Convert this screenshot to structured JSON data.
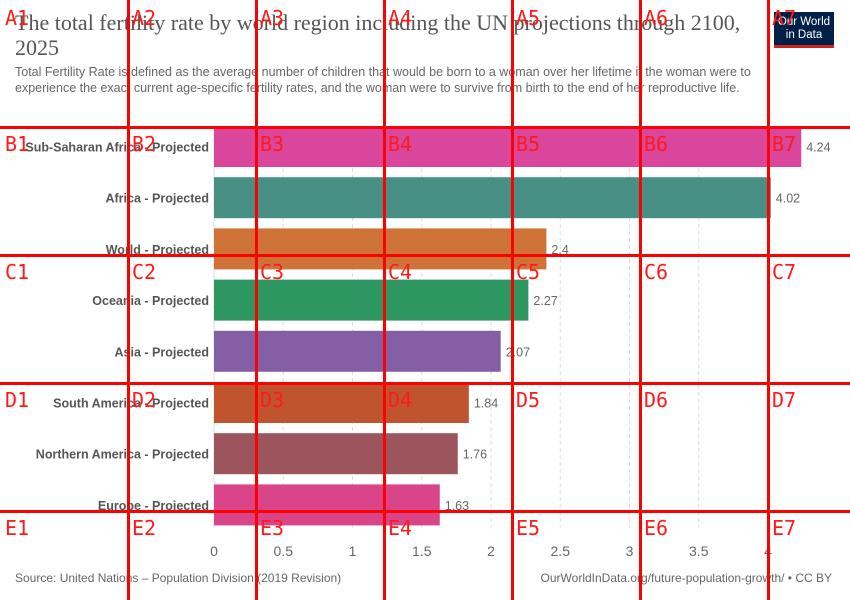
{
  "header": {
    "title": "The total fertility rate by world region including the UN projections through 2100, 2025",
    "subtitle": "Total Fertility Rate is defined as the average number of children that would be born to a woman over her lifetime if the woman were to experience the exact current age-specific fertility rates, and the woman were to survive from birth to the end of her reproductive life.",
    "logo_line1": "Our World",
    "logo_line2": "in Data"
  },
  "chart_data": {
    "type": "bar",
    "orientation": "horizontal",
    "categories": [
      "Sub-Saharan Africa - Projected",
      "Africa - Projected",
      "World - Projected",
      "Oceania - Projected",
      "Asia - Projected",
      "South America - Projected",
      "Northern America - Projected",
      "Europe - Projected"
    ],
    "values": [
      4.24,
      4.02,
      2.4,
      2.27,
      2.07,
      1.84,
      1.76,
      1.63
    ],
    "value_labels": [
      "4.24",
      "4.02",
      "2.4",
      "2.27",
      "2.07",
      "1.84",
      "1.76",
      "1.63"
    ],
    "colors": [
      "#d73c97",
      "#3f8a7d",
      "#cc6a2c",
      "#239158",
      "#7e56a0",
      "#bd4b24",
      "#984c54",
      "#d73b82"
    ],
    "xlim": [
      0,
      4.24
    ],
    "x_ticks": [
      0,
      0.5,
      1,
      1.5,
      2,
      2.5,
      3,
      3.5,
      4
    ],
    "x_tick_labels": [
      "0",
      "0.5",
      "1",
      "1.5",
      "2",
      "2.5",
      "3",
      "3.5",
      "4"
    ],
    "grid": "vertical dashed"
  },
  "footer": {
    "source": "Source: United Nations – Population Division (2019 Revision)",
    "url": "OurWorldInData.org/future-population-growth/ • CC BY"
  },
  "overlay": {
    "col_labels": [
      "A",
      "B",
      "C",
      "D",
      "E"
    ],
    "cells": [
      [
        "A1",
        "A2",
        "A3",
        "A4",
        "A5",
        "A6",
        "A7"
      ],
      [
        "B1",
        "B2",
        "B3",
        "B4",
        "B5",
        "B6",
        "B7"
      ],
      [
        "C1",
        "C2",
        "C3",
        "C4",
        "C5",
        "C6",
        "C7"
      ],
      [
        "D1",
        "D2",
        "D3",
        "D4",
        "D5",
        "D6",
        "D7"
      ],
      [
        "E1",
        "E2",
        "E3",
        "E4",
        "E5",
        "E6",
        "E7"
      ]
    ]
  }
}
